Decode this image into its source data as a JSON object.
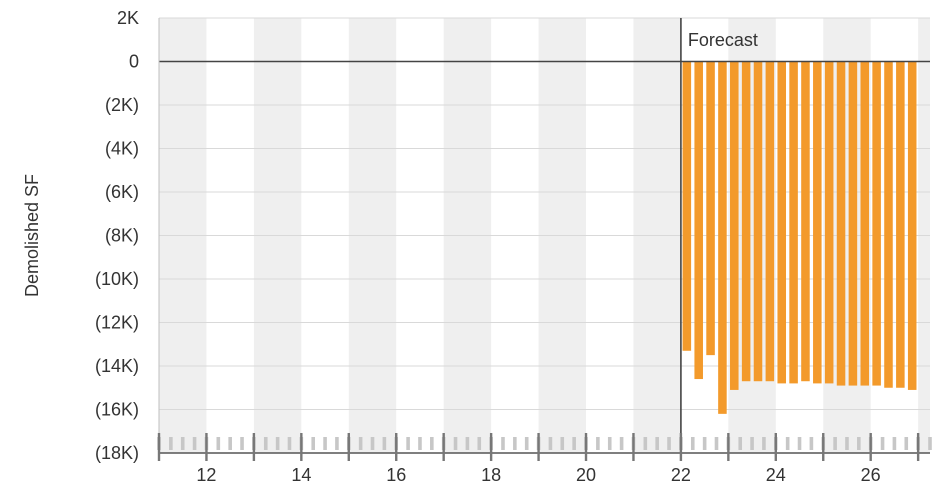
{
  "chart_data": {
    "type": "bar",
    "ylabel": "Demolished SF",
    "xlim": [
      2011.0,
      2027.25
    ],
    "ylim": [
      -18000,
      2000
    ],
    "y_ticks": [
      2000,
      0,
      -2000,
      -4000,
      -6000,
      -8000,
      -10000,
      -12000,
      -14000,
      -16000,
      -18000
    ],
    "y_tick_labels": [
      "2K",
      "0",
      "(2K)",
      "(4K)",
      "(6K)",
      "(8K)",
      "(10K)",
      "(12K)",
      "(14K)",
      "(16K)",
      "(18K)"
    ],
    "x_ticks": [
      2012,
      2014,
      2016,
      2018,
      2020,
      2022,
      2024,
      2026
    ],
    "x_tick_labels": [
      "12",
      "14",
      "16",
      "18",
      "20",
      "22",
      "24",
      "26"
    ],
    "grid": true,
    "forecast_start": 2022.0,
    "forecast_label": "Forecast",
    "bar_color": "#f39a2b",
    "series": [
      {
        "x": [
          2022.25,
          2022.5,
          2022.75,
          2023.0,
          2023.25,
          2023.5,
          2023.75,
          2024.0,
          2024.25,
          2024.5,
          2024.75,
          2025.0,
          2025.25,
          2025.5,
          2025.75,
          2026.0,
          2026.25,
          2026.5,
          2026.75,
          2027.0
        ],
        "values": [
          -13300,
          -14600,
          -13500,
          -16200,
          -15100,
          -14700,
          -14700,
          -14700,
          -14800,
          -14800,
          -14700,
          -14800,
          -14800,
          -14900,
          -14900,
          -14900,
          -14900,
          -15000,
          -15000,
          -15100
        ]
      }
    ]
  }
}
